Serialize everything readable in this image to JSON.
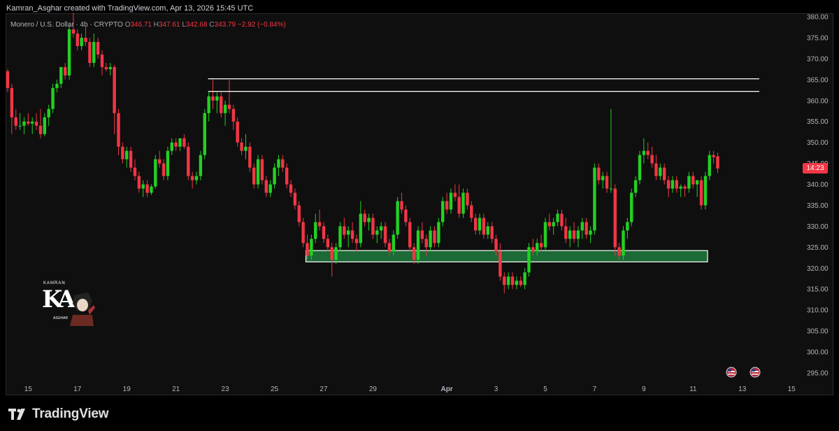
{
  "header": {
    "credit": "Kamran_Asghar created with TradingView.com, Apr 13, 2026 15:45 UTC"
  },
  "legend": {
    "symbol": "Monero / U.S. Dollar · 4h · CRYPTO",
    "o_label": "O",
    "o": "346.71",
    "h_label": "H",
    "h": "347.61",
    "l_label": "L",
    "l": "342.68",
    "c_label": "C",
    "c": "343.79",
    "change": "−2.92 (−0.84%)"
  },
  "price_badge": {
    "countdown": "14:23",
    "color": "#f23645"
  },
  "watermark": {
    "brand": "KAMRAN",
    "letters": "KA",
    "sub": "ASGHAR"
  },
  "footer": {
    "logo_text": "TradingView"
  },
  "colors": {
    "up": "#22d122",
    "down": "#f23645",
    "zone": "#1e7a3c",
    "background": "#0f0f0f"
  },
  "chart_data": {
    "type": "candlestick",
    "timeframe": "4h",
    "ylim": [
      293,
      381
    ],
    "yticks": [
      295,
      300,
      305,
      310,
      315,
      320,
      325,
      330,
      335,
      340,
      345,
      350,
      355,
      360,
      365,
      370,
      375,
      380
    ],
    "ytick_labels": [
      "295.00",
      "300.00",
      "305.00",
      "310.00",
      "315.00",
      "320.00",
      "325.00",
      "330.00",
      "335.00",
      "340.00",
      "345.00",
      "350.00",
      "355.00",
      "360.00",
      "365.00",
      "370.00",
      "375.00",
      "380.00"
    ],
    "xticks": [
      {
        "label": "15",
        "idx": 5
      },
      {
        "label": "17",
        "idx": 17
      },
      {
        "label": "19",
        "idx": 29
      },
      {
        "label": "21",
        "idx": 41
      },
      {
        "label": "23",
        "idx": 53
      },
      {
        "label": "25",
        "idx": 65
      },
      {
        "label": "27",
        "idx": 77
      },
      {
        "label": "29",
        "idx": 89
      },
      {
        "label": "Apr",
        "idx": 107
      },
      {
        "label": "3",
        "idx": 119
      },
      {
        "label": "5",
        "idx": 131
      },
      {
        "label": "7",
        "idx": 143
      },
      {
        "label": "9",
        "idx": 155
      },
      {
        "label": "11",
        "idx": 167
      },
      {
        "label": "13",
        "idx": 179
      },
      {
        "label": "15",
        "idx": 191
      }
    ],
    "resistance_lines": [
      365.2,
      362.2
    ],
    "support_zone": [
      321.5,
      324.2
    ],
    "candles": [
      [
        367.0,
        367.5,
        362.0,
        363.0
      ],
      [
        363.0,
        364.0,
        352.0,
        356.0
      ],
      [
        356.0,
        358.0,
        353.0,
        354.0
      ],
      [
        354.0,
        357.0,
        353.0,
        354.0
      ],
      [
        354.0,
        356.0,
        352.0,
        355.0
      ],
      [
        355.0,
        357.0,
        354.0,
        354.5
      ],
      [
        354.5,
        356.0,
        352.0,
        355.0
      ],
      [
        355.0,
        357.0,
        353.0,
        354.0
      ],
      [
        354.0,
        358.0,
        351.0,
        352.0
      ],
      [
        352.0,
        357.0,
        351.5,
        356.0
      ],
      [
        356.0,
        359.0,
        354.0,
        358.0
      ],
      [
        358.0,
        364.0,
        357.0,
        363.0
      ],
      [
        363.0,
        365.0,
        362.0,
        364.0
      ],
      [
        364.0,
        368.0,
        363.0,
        368.0
      ],
      [
        368.0,
        369.0,
        365.0,
        366.0
      ],
      [
        366.0,
        378.0,
        365.0,
        377.0
      ],
      [
        377.0,
        381.0,
        375.0,
        376.0
      ],
      [
        376.0,
        377.0,
        372.0,
        373.0
      ],
      [
        373.0,
        376.0,
        372.0,
        375.0
      ],
      [
        375.0,
        378.0,
        373.0,
        374.0
      ],
      [
        374.0,
        375.0,
        368.0,
        369.0
      ],
      [
        369.0,
        376.0,
        368.0,
        374.0
      ],
      [
        374.0,
        375.0,
        370.0,
        371.0
      ],
      [
        371.0,
        372.0,
        366.0,
        368.0
      ],
      [
        368.0,
        369.0,
        367.0,
        367.5
      ],
      [
        367.5,
        369.0,
        366.0,
        368.0
      ],
      [
        368.0,
        368.5,
        352.0,
        357.0
      ],
      [
        357.0,
        358.0,
        347.0,
        349.0
      ],
      [
        349.0,
        350.0,
        345.0,
        346.0
      ],
      [
        346.0,
        349.0,
        344.0,
        348.0
      ],
      [
        348.0,
        349.0,
        343.0,
        344.0
      ],
      [
        344.0,
        346.0,
        341.0,
        342.0
      ],
      [
        342.0,
        343.0,
        338.0,
        339.0
      ],
      [
        339.0,
        341.0,
        337.0,
        340.0
      ],
      [
        340.0,
        341.0,
        337.0,
        338.0
      ],
      [
        338.0,
        340.0,
        337.5,
        339.5
      ],
      [
        339.5,
        347.0,
        339.0,
        346.0
      ],
      [
        346.0,
        348.0,
        344.0,
        345.0
      ],
      [
        345.0,
        346.0,
        341.0,
        342.0
      ],
      [
        342.0,
        349.0,
        341.0,
        348.0
      ],
      [
        348.0,
        351.0,
        347.0,
        350.0
      ],
      [
        350.0,
        351.0,
        348.0,
        349.0
      ],
      [
        349.0,
        351.0,
        348.0,
        351.0
      ],
      [
        351.0,
        352.0,
        348.5,
        349.0
      ],
      [
        349.0,
        350.0,
        341.0,
        342.0
      ],
      [
        342.0,
        343.0,
        339.0,
        341.0
      ],
      [
        341.0,
        343.0,
        340.0,
        342.0
      ],
      [
        342.0,
        348.0,
        341.0,
        347.0
      ],
      [
        347.0,
        358.0,
        346.0,
        357.0
      ],
      [
        357.0,
        362.0,
        355.0,
        361.0
      ],
      [
        361.0,
        365.0,
        358.0,
        360.0
      ],
      [
        360.0,
        362.0,
        357.0,
        361.0
      ],
      [
        361.0,
        362.0,
        356.0,
        357.0
      ],
      [
        357.0,
        360.0,
        354.0,
        359.0
      ],
      [
        359.0,
        365.0,
        357.0,
        358.0
      ],
      [
        358.0,
        359.0,
        353.0,
        355.0
      ],
      [
        355.0,
        356.0,
        349.0,
        350.0
      ],
      [
        350.0,
        351.0,
        347.0,
        348.0
      ],
      [
        348.0,
        352.0,
        346.0,
        349.0
      ],
      [
        349.0,
        350.0,
        343.0,
        344.0
      ],
      [
        344.0,
        345.0,
        339.0,
        340.0
      ],
      [
        340.0,
        347.0,
        339.0,
        346.0
      ],
      [
        346.0,
        347.0,
        340.0,
        341.0
      ],
      [
        341.0,
        342.0,
        337.0,
        338.0
      ],
      [
        338.0,
        341.0,
        337.0,
        340.0
      ],
      [
        340.0,
        345.0,
        339.0,
        344.0
      ],
      [
        344.0,
        347.0,
        342.0,
        346.0
      ],
      [
        346.0,
        347.0,
        343.0,
        344.0
      ],
      [
        344.0,
        345.0,
        339.0,
        340.0
      ],
      [
        340.0,
        341.0,
        337.0,
        338.0
      ],
      [
        338.0,
        339.0,
        334.0,
        335.0
      ],
      [
        335.0,
        336.0,
        330.0,
        331.0
      ],
      [
        331.0,
        332.0,
        325.0,
        326.0
      ],
      [
        326.0,
        328.0,
        322.0,
        323.0
      ],
      [
        323.0,
        328.0,
        322.0,
        327.0
      ],
      [
        327.0,
        333.0,
        326.0,
        331.0
      ],
      [
        331.0,
        334.0,
        329.0,
        330.0
      ],
      [
        330.0,
        331.0,
        326.0,
        327.0
      ],
      [
        327.0,
        328.0,
        324.0,
        325.0
      ],
      [
        325.0,
        326.0,
        318.0,
        322.0
      ],
      [
        322.0,
        326.0,
        321.0,
        325.0
      ],
      [
        325.0,
        331.0,
        324.0,
        330.0
      ],
      [
        330.0,
        332.0,
        327.0,
        328.0
      ],
      [
        328.0,
        330.0,
        325.0,
        329.0
      ],
      [
        329.0,
        331.0,
        326.0,
        327.0
      ],
      [
        327.0,
        328.0,
        324.0,
        326.0
      ],
      [
        326.0,
        336.0,
        325.0,
        333.0
      ],
      [
        333.0,
        334.0,
        330.0,
        331.0
      ],
      [
        331.0,
        333.0,
        329.0,
        332.0
      ],
      [
        332.0,
        333.0,
        327.0,
        328.0
      ],
      [
        328.0,
        330.0,
        326.0,
        329.0
      ],
      [
        329.0,
        331.0,
        327.0,
        330.0
      ],
      [
        330.0,
        331.0,
        325.0,
        326.0
      ],
      [
        326.0,
        327.0,
        323.0,
        324.0
      ],
      [
        324.0,
        329.0,
        323.0,
        328.0
      ],
      [
        328.0,
        337.0,
        327.0,
        336.0
      ],
      [
        336.0,
        338.0,
        333.0,
        334.0
      ],
      [
        334.0,
        335.0,
        330.0,
        331.0
      ],
      [
        331.0,
        332.0,
        324.0,
        325.0
      ],
      [
        325.0,
        326.0,
        321.0,
        322.0
      ],
      [
        322.0,
        330.0,
        321.0,
        329.0
      ],
      [
        329.0,
        331.0,
        326.0,
        327.0
      ],
      [
        327.0,
        328.0,
        323.0,
        325.0
      ],
      [
        325.0,
        330.0,
        324.0,
        329.0
      ],
      [
        329.0,
        330.0,
        325.0,
        326.0
      ],
      [
        326.0,
        332.0,
        325.0,
        331.0
      ],
      [
        331.0,
        337.0,
        330.0,
        336.0
      ],
      [
        336.0,
        338.0,
        333.0,
        334.0
      ],
      [
        334.0,
        339.0,
        333.0,
        338.0
      ],
      [
        338.0,
        340.0,
        336.0,
        337.0
      ],
      [
        337.0,
        340.0,
        332.0,
        333.0
      ],
      [
        333.0,
        339.0,
        332.0,
        338.0
      ],
      [
        338.0,
        339.0,
        334.0,
        335.0
      ],
      [
        335.0,
        336.0,
        331.0,
        332.0
      ],
      [
        332.0,
        333.0,
        328.0,
        329.0
      ],
      [
        329.0,
        333.0,
        328.0,
        332.0
      ],
      [
        332.0,
        333.0,
        327.0,
        328.0
      ],
      [
        328.0,
        331.0,
        327.0,
        330.0
      ],
      [
        330.0,
        331.0,
        326.0,
        327.0
      ],
      [
        327.0,
        328.0,
        323.0,
        324.0
      ],
      [
        324.0,
        326.0,
        317.0,
        318.0
      ],
      [
        318.0,
        319.0,
        314.0,
        316.0
      ],
      [
        316.0,
        319.0,
        315.0,
        318.0
      ],
      [
        318.0,
        319.0,
        315.0,
        316.0
      ],
      [
        316.0,
        318.0,
        315.0,
        317.0
      ],
      [
        317.0,
        318.0,
        315.5,
        316.0
      ],
      [
        316.0,
        320.0,
        315.0,
        319.0
      ],
      [
        319.0,
        326.0,
        318.0,
        325.0
      ],
      [
        325.0,
        327.0,
        323.0,
        324.0
      ],
      [
        324.0,
        327.0,
        323.0,
        326.0
      ],
      [
        326.0,
        328.0,
        324.0,
        325.0
      ],
      [
        325.0,
        332.0,
        324.0,
        331.0
      ],
      [
        331.0,
        333.0,
        329.0,
        330.0
      ],
      [
        330.0,
        332.0,
        328.0,
        331.0
      ],
      [
        331.0,
        334.0,
        330.0,
        333.0
      ],
      [
        333.0,
        334.0,
        329.0,
        330.0
      ],
      [
        330.0,
        332.0,
        326.0,
        327.0
      ],
      [
        327.0,
        330.0,
        325.0,
        329.0
      ],
      [
        329.0,
        331.0,
        326.0,
        327.0
      ],
      [
        327.0,
        330.0,
        325.0,
        329.0
      ],
      [
        329.0,
        332.0,
        327.0,
        331.0
      ],
      [
        331.0,
        332.0,
        327.0,
        328.0
      ],
      [
        328.0,
        330.0,
        326.0,
        329.0
      ],
      [
        329.0,
        345.0,
        328.0,
        344.0
      ],
      [
        344.0,
        345.0,
        340.0,
        341.0
      ],
      [
        341.0,
        343.0,
        339.0,
        342.0
      ],
      [
        342.0,
        343.0,
        338.0,
        339.0
      ],
      [
        339.0,
        358.0,
        338.0,
        339.0
      ],
      [
        339.0,
        340.0,
        323.0,
        325.0
      ],
      [
        325.0,
        326.0,
        322.0,
        323.0
      ],
      [
        323.0,
        330.0,
        322.0,
        329.0
      ],
      [
        329.0,
        332.0,
        327.0,
        331.0
      ],
      [
        331.0,
        339.0,
        330.0,
        338.0
      ],
      [
        338.0,
        342.0,
        337.0,
        341.0
      ],
      [
        341.0,
        348.0,
        340.0,
        347.0
      ],
      [
        347.0,
        351.0,
        345.0,
        348.0
      ],
      [
        348.0,
        350.0,
        346.0,
        347.0
      ],
      [
        347.0,
        349.0,
        344.0,
        345.0
      ],
      [
        345.0,
        347.0,
        341.0,
        342.0
      ],
      [
        342.0,
        345.0,
        341.0,
        344.0
      ],
      [
        344.0,
        345.0,
        340.0,
        341.0
      ],
      [
        341.0,
        342.0,
        337.0,
        339.0
      ],
      [
        339.0,
        342.0,
        338.0,
        341.0
      ],
      [
        341.0,
        342.0,
        338.0,
        339.0
      ],
      [
        339.0,
        340.0,
        337.0,
        339.5
      ],
      [
        339.5,
        340.0,
        337.0,
        339.0
      ],
      [
        339.0,
        343.0,
        338.0,
        342.0
      ],
      [
        342.0,
        343.0,
        339.0,
        340.0
      ],
      [
        340.0,
        341.0,
        337.0,
        341.0
      ],
      [
        341.0,
        342.0,
        334.0,
        335.0
      ],
      [
        335.0,
        343.0,
        334.0,
        342.0
      ],
      [
        342.0,
        348.0,
        341.0,
        347.0
      ],
      [
        347.0,
        348.0,
        345.0,
        346.5
      ],
      [
        346.71,
        347.61,
        342.68,
        343.79
      ]
    ]
  }
}
